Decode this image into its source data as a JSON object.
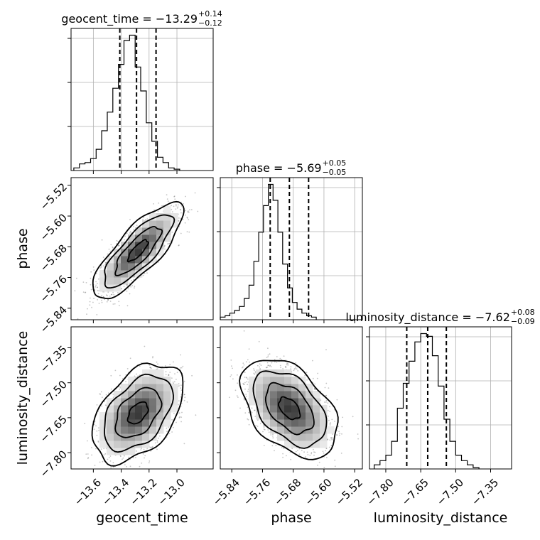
{
  "chart_data": {
    "type": "corner",
    "parameters": [
      "geocent_time",
      "phase",
      "luminosity_distance"
    ],
    "titles": [
      {
        "param": "geocent_time",
        "median": "−13.29",
        "plus": "+0.14",
        "minus": "−0.12"
      },
      {
        "param": "phase",
        "median": "−5.69",
        "plus": "+0.05",
        "minus": "−0.05"
      },
      {
        "param": "luminosity_distance",
        "median": "−7.62",
        "plus": "+0.08",
        "minus": "−0.09"
      }
    ],
    "ranges": [
      [
        -13.76,
        -12.74
      ],
      [
        -5.87,
        -5.5
      ],
      [
        -7.87,
        -7.26
      ]
    ],
    "ticks": [
      {
        "values": [
          -13.6,
          -13.4,
          -13.2,
          -13.0
        ],
        "labels": [
          "−13.6",
          "−13.4",
          "−13.2",
          "−13.0"
        ]
      },
      {
        "values": [
          -5.84,
          -5.76,
          -5.68,
          -5.6,
          -5.52
        ],
        "labels": [
          "−5.84",
          "−5.76",
          "−5.68",
          "−5.60",
          "−5.52"
        ]
      },
      {
        "values": [
          -7.8,
          -7.65,
          -7.5,
          -7.35
        ],
        "labels": [
          "−7.80",
          "−7.65",
          "−7.50",
          "−7.35"
        ]
      }
    ],
    "quantiles": [
      [
        -13.41,
        -13.29,
        -13.15
      ],
      [
        -5.74,
        -5.69,
        -5.64
      ],
      [
        -7.71,
        -7.62,
        -7.54
      ]
    ],
    "histograms": [
      {
        "edges_start": -13.74,
        "bin_width": 0.04,
        "counts": [
          2,
          5,
          6,
          9,
          16,
          30,
          44,
          62,
          80,
          98,
          102,
          78,
          60,
          36,
          22,
          10,
          6,
          2,
          1
        ]
      },
      {
        "edges_start": -5.87,
        "bin_width": 0.0125,
        "counts": [
          2,
          3,
          5,
          7,
          10,
          16,
          26,
          44,
          66,
          86,
          102,
          90,
          66,
          42,
          24,
          13,
          8,
          5,
          3,
          2
        ]
      },
      {
        "edges_start": -7.85,
        "bin_width": 0.025,
        "counts": [
          3,
          6,
          10,
          20,
          44,
          62,
          78,
          92,
          98,
          96,
          82,
          60,
          36,
          20,
          10,
          6,
          3,
          1
        ]
      }
    ],
    "pairs": [
      {
        "x": 0,
        "y": 1,
        "rho": 0.8,
        "peak": [
          -13.28,
          -5.69
        ]
      },
      {
        "x": 0,
        "y": 2,
        "rho": 0.45,
        "peak": [
          -13.28,
          -7.63
        ]
      },
      {
        "x": 1,
        "y": 2,
        "rho": -0.45,
        "peak": [
          -5.69,
          -7.61
        ]
      }
    ],
    "grid": true
  }
}
